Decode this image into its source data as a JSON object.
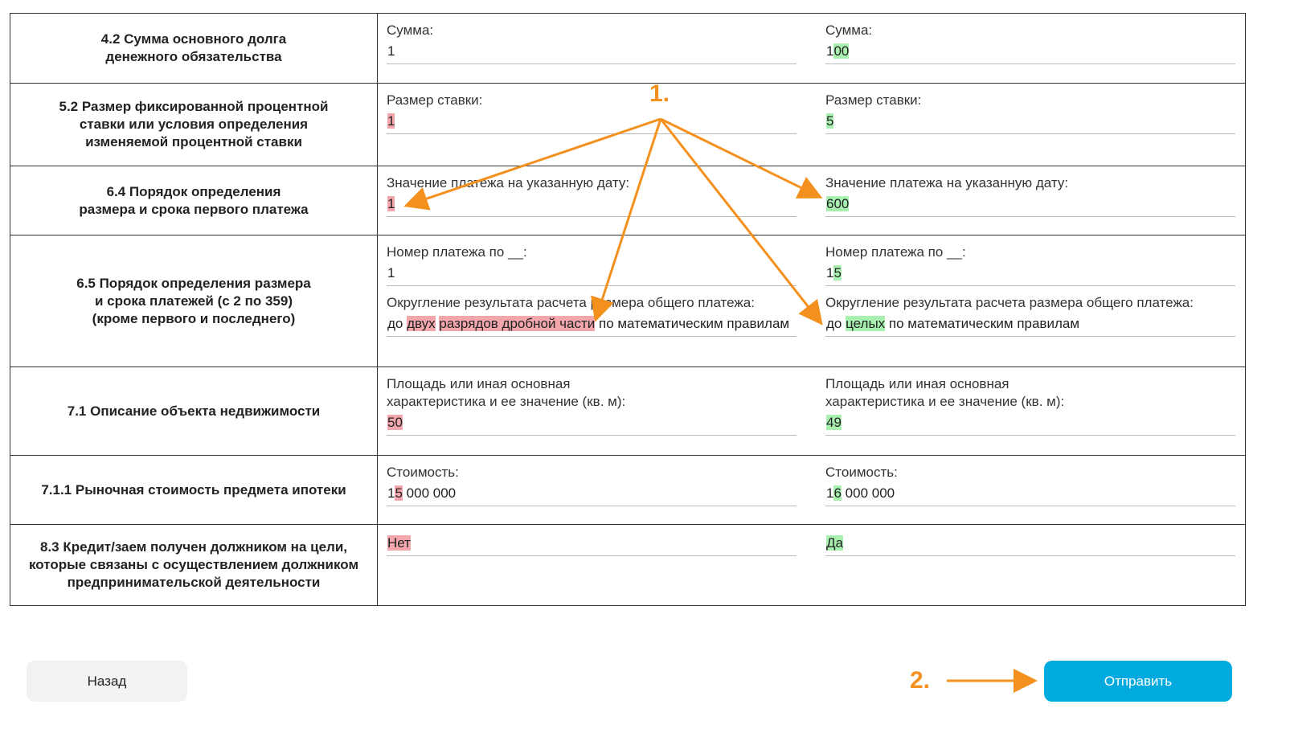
{
  "rows": [
    {
      "label_lines": [
        "4.2 Сумма основного долга",
        "денежного обязательства"
      ],
      "left": [
        {
          "label": "Сумма:",
          "value": [
            {
              "t": "1"
            }
          ]
        }
      ],
      "right": [
        {
          "label": "Сумма:",
          "value": [
            {
              "t": "1"
            },
            {
              "t": "00",
              "h": "g"
            }
          ]
        }
      ]
    },
    {
      "label_lines": [
        "5.2 Размер фиксированной процентной",
        "ставки или условия определения",
        "изменяемой процентной ставки"
      ],
      "left": [
        {
          "label": "Размер ставки:",
          "value": [
            {
              "t": "1",
              "h": "r"
            }
          ]
        }
      ],
      "right": [
        {
          "label": "Размер ставки:",
          "value": [
            {
              "t": "5",
              "h": "g"
            }
          ]
        }
      ]
    },
    {
      "label_lines": [
        "6.4 Порядок определения",
        "размера и срока первого платежа"
      ],
      "left": [
        {
          "label": "Значение платежа на указанную дату:",
          "value": [
            {
              "t": "1",
              "h": "r"
            }
          ]
        }
      ],
      "right": [
        {
          "label": "Значение платежа на указанную дату:",
          "value": [
            {
              "t": "600",
              "h": "g"
            }
          ]
        }
      ]
    },
    {
      "label_lines": [
        "6.5 Порядок определения размера",
        "и срока платежей (с 2 по 359)",
        "(кроме первого и последнего)"
      ],
      "left": [
        {
          "label": "Номер платежа по __:",
          "value": [
            {
              "t": "1"
            }
          ]
        },
        {
          "label": "Округление результата расчета размера общего платежа:",
          "value": [
            {
              "t": "до "
            },
            {
              "t": "двух",
              "h": "r"
            },
            {
              "t": " "
            },
            {
              "t": "разрядов дробной части",
              "h": "r"
            },
            {
              "t": " по математическим правилам"
            }
          ]
        }
      ],
      "right": [
        {
          "label": "Номер платежа по __:",
          "value": [
            {
              "t": "1"
            },
            {
              "t": "5",
              "h": "g"
            }
          ]
        },
        {
          "label": "Округление результата расчета размера общего платежа:",
          "value": [
            {
              "t": "до "
            },
            {
              "t": "целых",
              "h": "g"
            },
            {
              "t": " по математическим правилам"
            }
          ]
        }
      ]
    },
    {
      "label_lines": [
        "7.1 Описание объекта недвижимости"
      ],
      "left": [
        {
          "label": "Площадь или иная основная характеристика и ее значение (кв. м):",
          "value": [
            {
              "t": "50",
              "h": "r"
            }
          ]
        }
      ],
      "right": [
        {
          "label": "Площадь или иная основная характеристика и ее значение (кв. м):",
          "value": [
            {
              "t": "49",
              "h": "g"
            }
          ]
        }
      ]
    },
    {
      "label_lines": [
        "7.1.1 Рыночная стоимость предмета ипотеки"
      ],
      "left": [
        {
          "label": "Стоимость:",
          "value": [
            {
              "t": "1"
            },
            {
              "t": "5",
              "h": "r"
            },
            {
              "t": " 000 000"
            }
          ]
        }
      ],
      "right": [
        {
          "label": "Стоимость:",
          "value": [
            {
              "t": "1"
            },
            {
              "t": "6",
              "h": "g"
            },
            {
              "t": " 000 000"
            }
          ]
        }
      ]
    },
    {
      "label_lines": [
        "8.3 Кредит/заем получен должником на цели,",
        "которые связаны с осуществлением должником",
        "предпринимательской деятельности"
      ],
      "left": [
        {
          "label": "",
          "value": [
            {
              "t": "Нет",
              "h": "r"
            }
          ]
        }
      ],
      "right": [
        {
          "label": "",
          "value": [
            {
              "t": "Да",
              "h": "g"
            }
          ]
        }
      ]
    }
  ],
  "buttons": {
    "back": "Назад",
    "submit": "Отправить"
  },
  "annotations": {
    "step1": "1.",
    "step2": "2."
  },
  "colors": {
    "removed": "#f4a6ad",
    "added": "#a8f0b0",
    "accent": "#00a9de",
    "annotation": "#f4901e"
  }
}
